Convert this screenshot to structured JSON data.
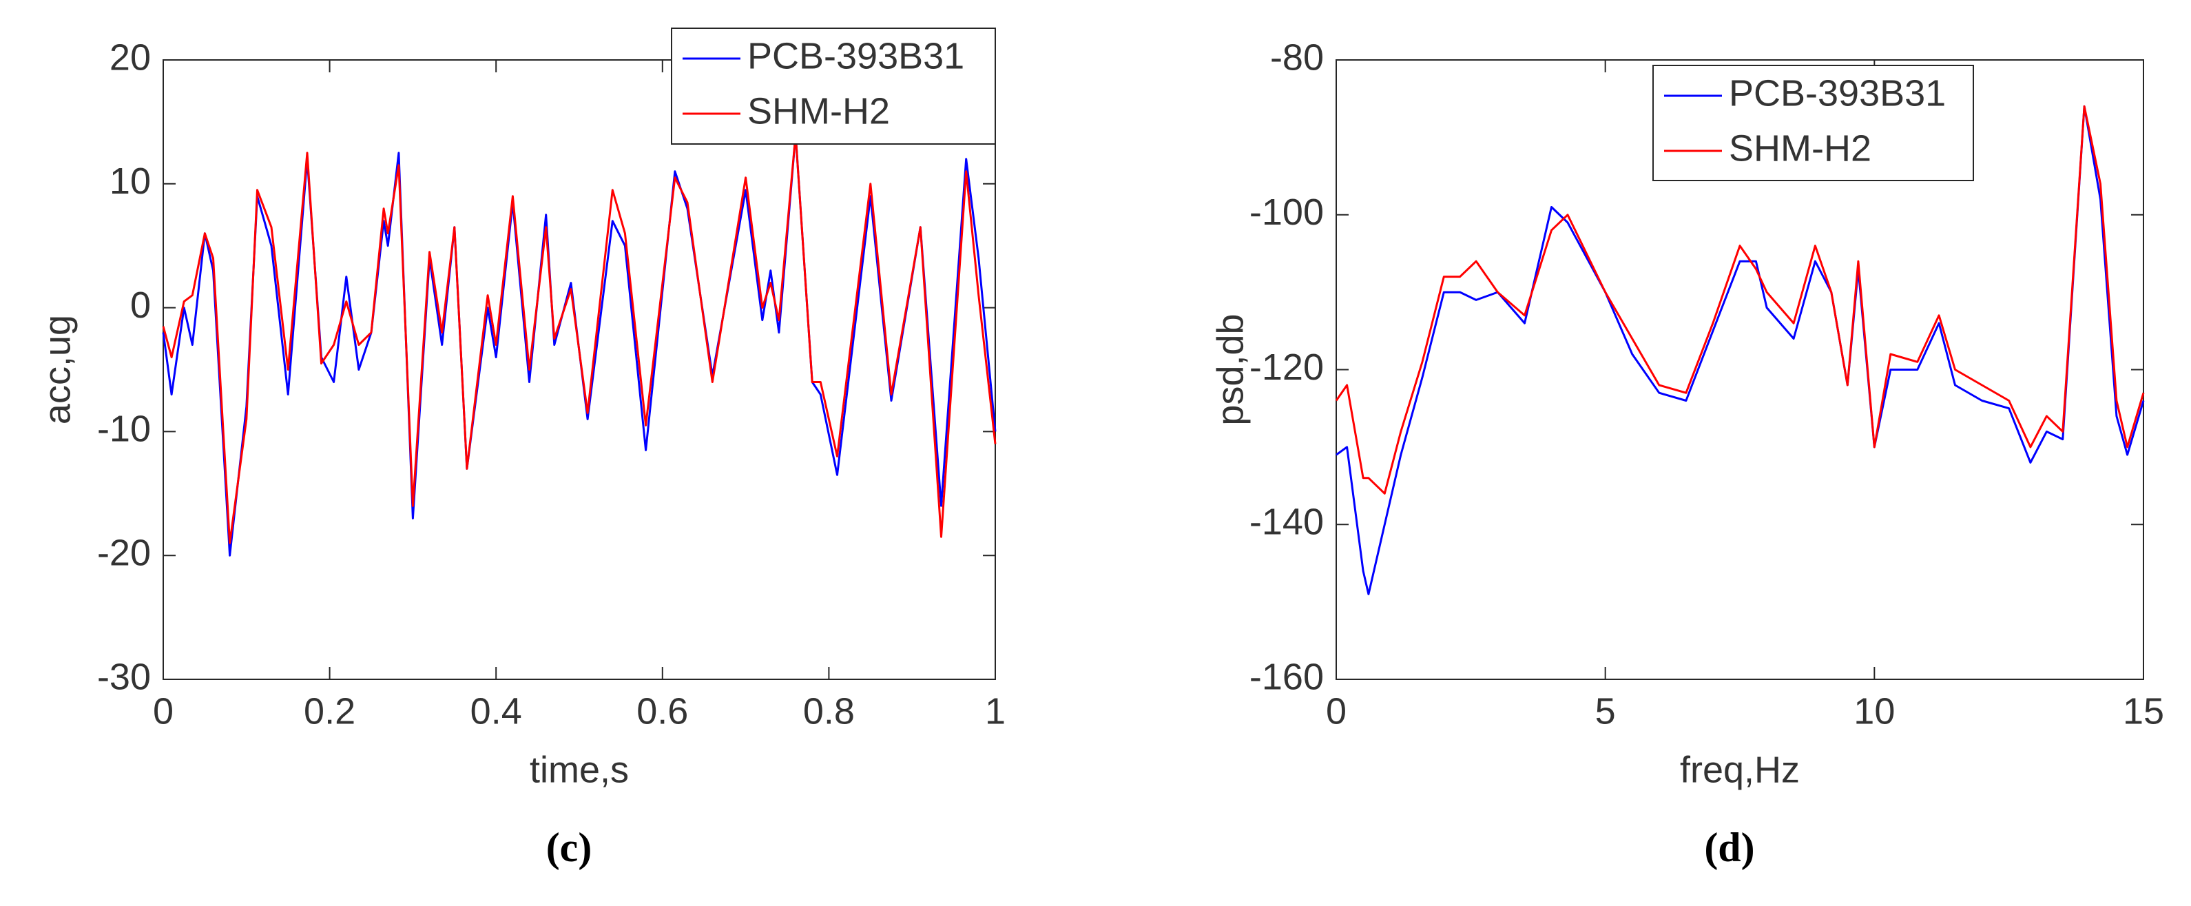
{
  "chart_data": [
    {
      "type": "line",
      "caption": "(c)",
      "xlabel": "time,s",
      "ylabel": "acc,ug",
      "x": [
        0,
        0.01,
        0.025,
        0.035,
        0.05,
        0.06,
        0.08,
        0.1,
        0.113,
        0.13,
        0.15,
        0.173,
        0.19,
        0.205,
        0.22,
        0.235,
        0.25,
        0.265,
        0.27,
        0.283,
        0.3,
        0.32,
        0.335,
        0.35,
        0.365,
        0.39,
        0.4,
        0.42,
        0.44,
        0.46,
        0.47,
        0.49,
        0.51,
        0.54,
        0.555,
        0.58,
        0.615,
        0.63,
        0.66,
        0.7,
        0.72,
        0.73,
        0.74,
        0.76,
        0.78,
        0.79,
        0.81,
        0.85,
        0.875,
        0.91,
        0.935,
        0.965,
        0.98,
        1
      ],
      "series": [
        {
          "name": "PCB-393B31",
          "color": "#0000ff",
          "values": [
            -2,
            -7,
            0,
            -3,
            6,
            3,
            -20,
            -8,
            9,
            5,
            -7,
            12,
            -4,
            -6,
            2.5,
            -5,
            -2,
            7,
            5,
            12.5,
            -17,
            4,
            -3,
            6.5,
            -13,
            0,
            -4,
            8.5,
            -6,
            7.5,
            -3,
            2,
            -9,
            7,
            5,
            -11.5,
            11,
            8,
            -5.5,
            9.5,
            -1,
            3,
            -2,
            14,
            -6,
            -7,
            -13.5,
            9,
            -7.5,
            6.5,
            -16,
            12,
            4,
            -10
          ]
        },
        {
          "name": "SHM-H2",
          "color": "#ff0000",
          "values": [
            -1.5,
            -4,
            0.5,
            1,
            6,
            4,
            -19,
            -9,
            9.5,
            6.5,
            -5,
            12.5,
            -4.5,
            -3,
            0.5,
            -3,
            -2,
            8,
            6,
            11.5,
            -16,
            4.5,
            -2,
            6.5,
            -13,
            1,
            -3,
            9,
            -5,
            6.5,
            -2.5,
            1.5,
            -8.5,
            9.5,
            6,
            -9.5,
            10.5,
            8.5,
            -6,
            10.5,
            0,
            2,
            -1,
            14,
            -6,
            -6,
            -12,
            10,
            -7,
            6.5,
            -18.5,
            11,
            1,
            -11
          ]
        }
      ],
      "xlim": [
        0,
        1
      ],
      "xticks": [
        0,
        0.2,
        0.4,
        0.6,
        0.8,
        1
      ],
      "ylim": [
        -30,
        20
      ],
      "yticks": [
        -30,
        -20,
        -10,
        0,
        10,
        20
      ],
      "legend": "upper right"
    },
    {
      "type": "line",
      "caption": "(d)",
      "xlabel": "freq,Hz",
      "ylabel": "psd,db",
      "x": [
        0,
        0.2,
        0.5,
        0.6,
        0.9,
        1.2,
        1.6,
        2,
        2.3,
        2.6,
        3,
        3.5,
        4,
        4.3,
        5,
        5.5,
        6,
        6.5,
        7,
        7.5,
        7.8,
        8,
        8.5,
        8.9,
        9.2,
        9.5,
        9.7,
        10,
        10.3,
        10.8,
        11.2,
        11.5,
        12,
        12.5,
        12.9,
        13.2,
        13.5,
        13.9,
        14.2,
        14.5,
        14.7,
        15
      ],
      "series": [
        {
          "name": "PCB-393B31",
          "color": "#0000ff",
          "values": [
            -131,
            -130,
            -146,
            -149,
            -140,
            -131,
            -121,
            -110,
            -110,
            -111,
            -110,
            -114,
            -99,
            -101,
            -110,
            -118,
            -123,
            -124,
            -115,
            -106,
            -106,
            -112,
            -116,
            -106,
            -110,
            -122,
            -107,
            -130,
            -120,
            -120,
            -114,
            -122,
            -124,
            -125,
            -132,
            -128,
            -129,
            -86,
            -98,
            -126,
            -131,
            -124
          ]
        },
        {
          "name": "SHM-H2",
          "color": "#ff0000",
          "values": [
            -124,
            -122,
            -134,
            -134,
            -136,
            -128,
            -119,
            -108,
            -108,
            -106,
            -110,
            -113,
            -102,
            -100,
            -110,
            -116,
            -122,
            -123,
            -114,
            -104,
            -107,
            -110,
            -114,
            -104,
            -110,
            -122,
            -106,
            -130,
            -118,
            -119,
            -113,
            -120,
            -122,
            -124,
            -130,
            -126,
            -128,
            -86,
            -96,
            -124,
            -130,
            -123
          ]
        }
      ],
      "xlim": [
        0,
        15
      ],
      "xticks": [
        0,
        5,
        10,
        15
      ],
      "ylim": [
        -160,
        -80
      ],
      "yticks": [
        -160,
        -140,
        -120,
        -100,
        -80
      ],
      "legend": "upper right"
    }
  ]
}
